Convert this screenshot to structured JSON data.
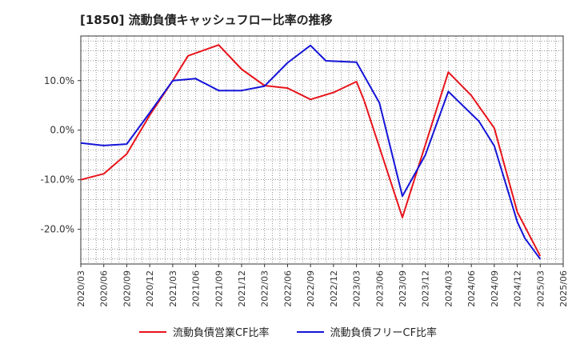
{
  "title": "[1850]  流動負債キャッシュフロー比率の推移",
  "chart_data": {
    "type": "line",
    "title": "[1850]  流動負債キャッシュフロー比率の推移",
    "xlabel": "",
    "ylabel": "",
    "x": [
      "2020/03",
      "2020/06",
      "2020/09",
      "2020/12",
      "2021/03",
      "2021/06",
      "2021/09",
      "2021/12",
      "2022/03",
      "2022/06",
      "2022/09",
      "2022/12",
      "2023/03",
      "2023/06",
      "2023/09",
      "2023/12",
      "2024/03",
      "2024/06",
      "2024/09",
      "2024/12",
      "2025/03",
      "2025/06"
    ],
    "ylim": [
      -27,
      19
    ],
    "yticks": [
      10,
      0,
      -10,
      -20
    ],
    "ytick_labels": [
      "10.0%",
      "0.0%",
      "-10.0%",
      "-20.0%"
    ],
    "grid": true,
    "legend_position": "bottom",
    "series": [
      {
        "name": "流動負債営業CF比率",
        "color": "#e8141b",
        "points": [
          [
            "2020/03",
            -10.0
          ],
          [
            "2020/06",
            -8.8
          ],
          [
            "2020/09",
            -4.8
          ],
          [
            "2020/12",
            3.0
          ],
          [
            "2021/03",
            10.0
          ],
          [
            "2021/04",
            12.5
          ],
          [
            "2021/05",
            15.0
          ],
          [
            "2021/09",
            17.2
          ],
          [
            "2021/12",
            12.3
          ],
          [
            "2022/03",
            9.0
          ],
          [
            "2022/06",
            8.5
          ],
          [
            "2022/09",
            6.2
          ],
          [
            "2022/12",
            7.6
          ],
          [
            "2023/03",
            9.8
          ],
          [
            "2023/04",
            6.0
          ],
          [
            "2023/09",
            -17.6
          ],
          [
            "2024/03",
            11.7
          ],
          [
            "2024/06",
            7.0
          ],
          [
            "2024/07",
            4.8
          ],
          [
            "2024/09",
            0.4
          ],
          [
            "2024/12",
            -16.5
          ],
          [
            "2025/03",
            -25.4
          ]
        ]
      },
      {
        "name": "流動負債フリーCF比率",
        "color": "#1414d8",
        "points": [
          [
            "2020/03",
            -2.6
          ],
          [
            "2020/06",
            -3.1
          ],
          [
            "2020/09",
            -2.8
          ],
          [
            "2020/12",
            3.5
          ],
          [
            "2021/03",
            10.0
          ],
          [
            "2021/06",
            10.4
          ],
          [
            "2021/09",
            8.0
          ],
          [
            "2021/12",
            8.0
          ],
          [
            "2022/03",
            8.9
          ],
          [
            "2022/06",
            13.6
          ],
          [
            "2022/09",
            17.1
          ],
          [
            "2022/11",
            14.0
          ],
          [
            "2023/03",
            13.7
          ],
          [
            "2023/06",
            5.5
          ],
          [
            "2023/09",
            -13.3
          ],
          [
            "2023/12",
            -5.0
          ],
          [
            "2024/03",
            7.8
          ],
          [
            "2024/07",
            1.8
          ],
          [
            "2024/09",
            -3.2
          ],
          [
            "2024/12",
            -18.5
          ],
          [
            "2025/01",
            -21.8
          ],
          [
            "2025/03",
            -26.0
          ]
        ]
      }
    ]
  }
}
